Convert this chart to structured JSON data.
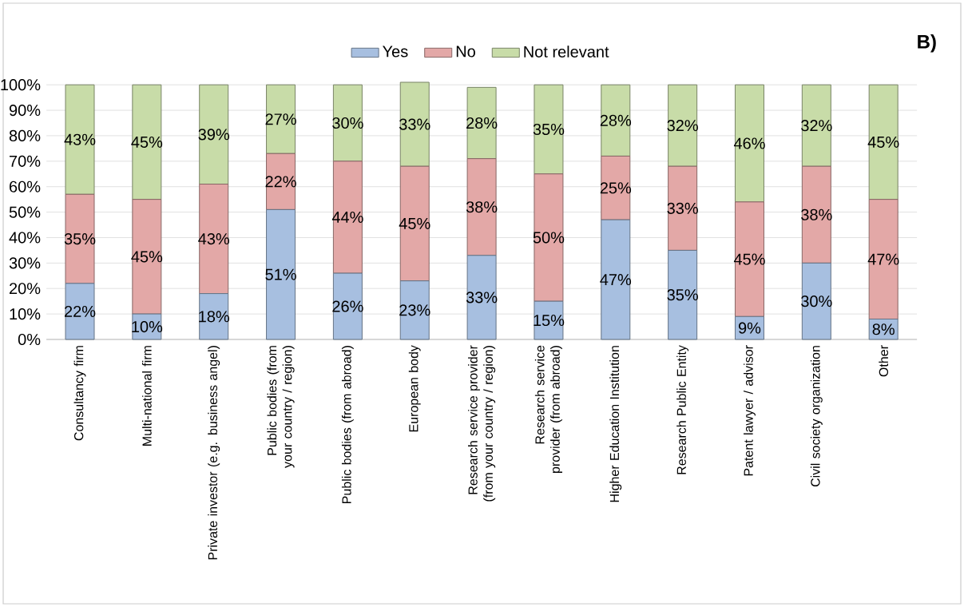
{
  "chart_data": {
    "type": "bar",
    "stacked": true,
    "categories": [
      "Consultancy firm",
      "Multi-national firm",
      "Private investor (e.g. business angel)",
      "Public bodies (from your country / region)",
      "Public bodies (from abroad)",
      "European body",
      "Research service provider (from your country / region)",
      "Research service provider (from abroad)",
      "Higher Education Institution",
      "Research Public Entity",
      "Patent lawyer / advisor",
      "Civil society organization",
      "Other"
    ],
    "series": [
      {
        "name": "Yes",
        "color": "#a7bfe0",
        "values": [
          22,
          10,
          18,
          51,
          26,
          23,
          33,
          15,
          47,
          35,
          9,
          30,
          8
        ],
        "value_labels": [
          "22%",
          "10%",
          "18%",
          "51%",
          "26%",
          "23%",
          "33%",
          "15%",
          "47%",
          "35%",
          "9%",
          "30%",
          "8%"
        ]
      },
      {
        "name": "No",
        "color": "#e3a8a7",
        "values": [
          35,
          45,
          43,
          22,
          44,
          45,
          38,
          50,
          25,
          33,
          45,
          38,
          47
        ],
        "value_labels": [
          "35%",
          "45%",
          "43%",
          "22%",
          "44%",
          "45%",
          "38%",
          "50%",
          "25%",
          "33%",
          "45%",
          "38%",
          "47%"
        ]
      },
      {
        "name": "Not relevant",
        "color": "#c8dca8",
        "values": [
          43,
          45,
          39,
          27,
          30,
          33,
          28,
          35,
          28,
          32,
          46,
          32,
          45
        ],
        "value_labels": [
          "43%",
          "45%",
          "39%",
          "27%",
          "30%",
          "33%",
          "28%",
          "35%",
          "28%",
          "32%",
          "46%",
          "32%",
          "45%"
        ]
      }
    ],
    "ylim": [
      0,
      101
    ],
    "yticks": [
      {
        "value": 0,
        "label": "0%"
      },
      {
        "value": 10,
        "label": "10%"
      },
      {
        "value": 20,
        "label": "20%"
      },
      {
        "value": 30,
        "label": "30%"
      },
      {
        "value": 40,
        "label": "40%"
      },
      {
        "value": 50,
        "label": "50%"
      },
      {
        "value": 60,
        "label": "60%"
      },
      {
        "value": 70,
        "label": "70%"
      },
      {
        "value": 80,
        "label": "80%"
      },
      {
        "value": 90,
        "label": "90%"
      },
      {
        "value": 100,
        "label": "100%"
      }
    ],
    "grid": "y",
    "legend": "top",
    "annotations": [
      "B)"
    ]
  }
}
